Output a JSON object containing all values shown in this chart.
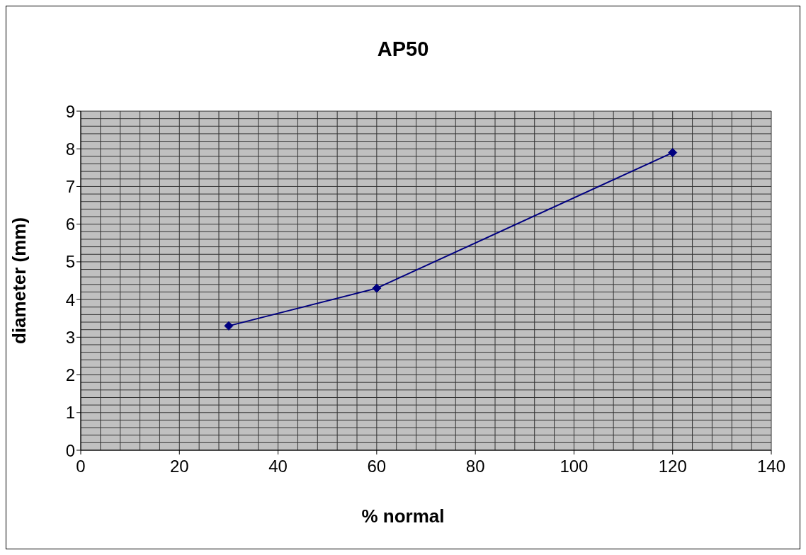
{
  "chart_data": {
    "type": "line",
    "title": "AP50",
    "xlabel": "% normal",
    "ylabel": "diameter (mm)",
    "x": [
      30,
      60,
      120
    ],
    "series": [
      {
        "color": "#000080",
        "values": [
          3.3,
          4.3,
          7.9
        ]
      }
    ],
    "xlim": [
      0,
      140
    ],
    "xticks": [
      0,
      20,
      40,
      60,
      80,
      100,
      120,
      140
    ],
    "ylim": [
      0,
      9
    ],
    "yticks": [
      0,
      1,
      2,
      3,
      4,
      5,
      6,
      7,
      8,
      9
    ],
    "grid": true,
    "marker": "diamond",
    "line_style": "solid",
    "legend": false
  }
}
